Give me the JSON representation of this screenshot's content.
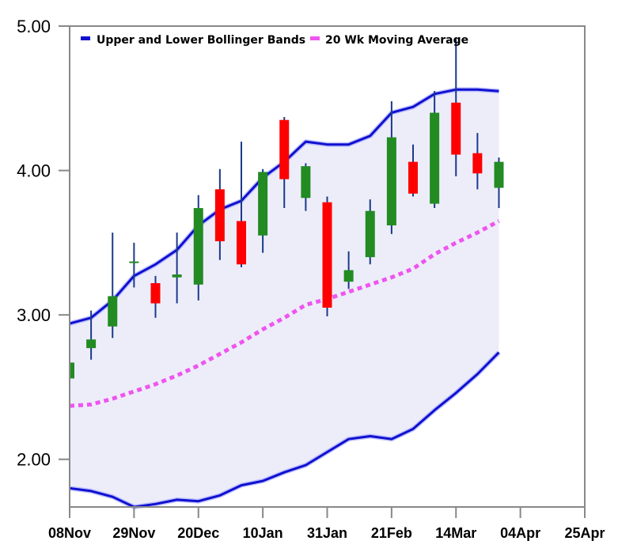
{
  "chart_data": {
    "type": "candlestick",
    "legend": {
      "placement": "top-left",
      "entries": [
        {
          "label": "Upper and Lower Bollinger Bands",
          "color": "#1010d0"
        },
        {
          "label": "20 Wk Moving Average",
          "color": "#ee55ee"
        }
      ]
    },
    "y_axis": {
      "min": 1.67,
      "max": 5.0,
      "ticks": [
        2.0,
        3.0,
        4.0,
        5.0
      ],
      "tick_labels": [
        "2.00",
        "3.00",
        "4.00",
        "5.00"
      ]
    },
    "x_axis": {
      "min": 0,
      "max": 24,
      "tick_positions": [
        0,
        3,
        6,
        9,
        12,
        15,
        18,
        21,
        24
      ],
      "tick_labels": [
        "08Nov",
        "29Nov",
        "20Dec",
        "10Jan",
        "31Jan",
        "21Feb",
        "14Mar",
        "04Apr",
        "25Apr"
      ]
    },
    "colors": {
      "up": "#228b22",
      "down": "#ff0000",
      "wick": "#1a3a8a",
      "band_line": "#1010d0",
      "band_fill": "#ededfa",
      "moving_average": "#ee55ee",
      "frame": "#888888"
    },
    "band_x": [
      0,
      1,
      2,
      3,
      4,
      5,
      6,
      7,
      8,
      9,
      10,
      11,
      12,
      13,
      14,
      15,
      16,
      17,
      18,
      19,
      20
    ],
    "upper_band": [
      2.94,
      2.98,
      3.1,
      3.27,
      3.35,
      3.45,
      3.62,
      3.73,
      3.79,
      3.95,
      4.06,
      4.2,
      4.18,
      4.18,
      4.24,
      4.4,
      4.44,
      4.53,
      4.56,
      4.56,
      4.55
    ],
    "lower_band": [
      1.8,
      1.78,
      1.74,
      1.67,
      1.69,
      1.72,
      1.71,
      1.75,
      1.82,
      1.85,
      1.91,
      1.96,
      2.05,
      2.14,
      2.16,
      2.14,
      2.21,
      2.34,
      2.46,
      2.59,
      2.74
    ],
    "moving_average": [
      2.37,
      2.38,
      2.42,
      2.47,
      2.52,
      2.58,
      2.65,
      2.73,
      2.81,
      2.9,
      2.98,
      3.07,
      3.11,
      3.16,
      3.21,
      3.26,
      3.32,
      3.42,
      3.5,
      3.57,
      3.65
    ],
    "candles": [
      {
        "x": 0,
        "open": 2.56,
        "close": 2.67,
        "high": 2.72,
        "low": 2.52
      },
      {
        "x": 1,
        "open": 2.77,
        "close": 2.83,
        "high": 3.03,
        "low": 2.69
      },
      {
        "x": 2,
        "open": 2.92,
        "close": 3.13,
        "high": 3.57,
        "low": 2.84
      },
      {
        "x": 3,
        "open": 3.36,
        "close": 3.37,
        "high": 3.5,
        "low": 3.19
      },
      {
        "x": 4,
        "open": 3.22,
        "close": 3.08,
        "high": 3.27,
        "low": 2.98
      },
      {
        "x": 5,
        "open": 3.26,
        "close": 3.28,
        "high": 3.57,
        "low": 3.08
      },
      {
        "x": 6,
        "open": 3.21,
        "close": 3.74,
        "high": 3.83,
        "low": 3.1
      },
      {
        "x": 7,
        "open": 3.87,
        "close": 3.51,
        "high": 4.01,
        "low": 3.38
      },
      {
        "x": 8,
        "open": 3.65,
        "close": 3.35,
        "high": 4.2,
        "low": 3.33
      },
      {
        "x": 9,
        "open": 3.55,
        "close": 3.99,
        "high": 4.01,
        "low": 3.43
      },
      {
        "x": 10,
        "open": 4.35,
        "close": 3.94,
        "high": 4.37,
        "low": 3.74
      },
      {
        "x": 11,
        "open": 3.81,
        "close": 4.03,
        "high": 4.05,
        "low": 3.72
      },
      {
        "x": 12,
        "open": 3.78,
        "close": 3.05,
        "high": 3.82,
        "low": 2.99
      },
      {
        "x": 13,
        "open": 3.23,
        "close": 3.31,
        "high": 3.44,
        "low": 3.18
      },
      {
        "x": 14,
        "open": 3.4,
        "close": 3.72,
        "high": 3.8,
        "low": 3.35
      },
      {
        "x": 15,
        "open": 3.62,
        "close": 4.23,
        "high": 4.48,
        "low": 3.56
      },
      {
        "x": 16,
        "open": 4.06,
        "close": 3.84,
        "high": 4.18,
        "low": 3.82
      },
      {
        "x": 17,
        "open": 3.77,
        "close": 4.4,
        "high": 4.55,
        "low": 3.74
      },
      {
        "x": 18,
        "open": 4.47,
        "close": 4.11,
        "high": 4.91,
        "low": 3.96
      },
      {
        "x": 19,
        "open": 4.12,
        "close": 3.98,
        "high": 4.26,
        "low": 3.87
      },
      {
        "x": 20,
        "open": 3.88,
        "close": 4.06,
        "high": 4.09,
        "low": 3.74
      }
    ]
  }
}
